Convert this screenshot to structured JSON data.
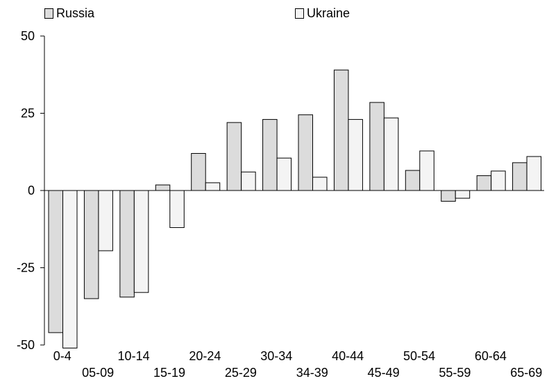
{
  "chart_data": {
    "type": "bar",
    "categories": [
      "0-4",
      "05-09",
      "10-14",
      "15-19",
      "20-24",
      "25-29",
      "30-34",
      "34-39",
      "40-44",
      "45-49",
      "50-54",
      "55-59",
      "60-64",
      "65-69"
    ],
    "series": [
      {
        "name": "Russia",
        "color": "#dcdcdc",
        "values": [
          -46,
          -35,
          -34.5,
          1.8,
          12,
          22,
          23,
          24.5,
          39,
          28.5,
          6.5,
          -3.5,
          4.8,
          9
        ]
      },
      {
        "name": "Ukraine",
        "color": "#f4f4f4",
        "values": [
          -51,
          -19.5,
          -33,
          -12,
          2.5,
          6,
          10.5,
          4.3,
          23,
          23.5,
          12.8,
          -2.5,
          6.3,
          11
        ]
      }
    ],
    "ylim": [
      -50,
      50
    ],
    "yticks": [
      50,
      25,
      0,
      -25,
      -50
    ],
    "ytick_labels": [
      "50",
      "25",
      "0",
      "-25",
      "-50"
    ],
    "legend_position": "top",
    "grid": false
  }
}
